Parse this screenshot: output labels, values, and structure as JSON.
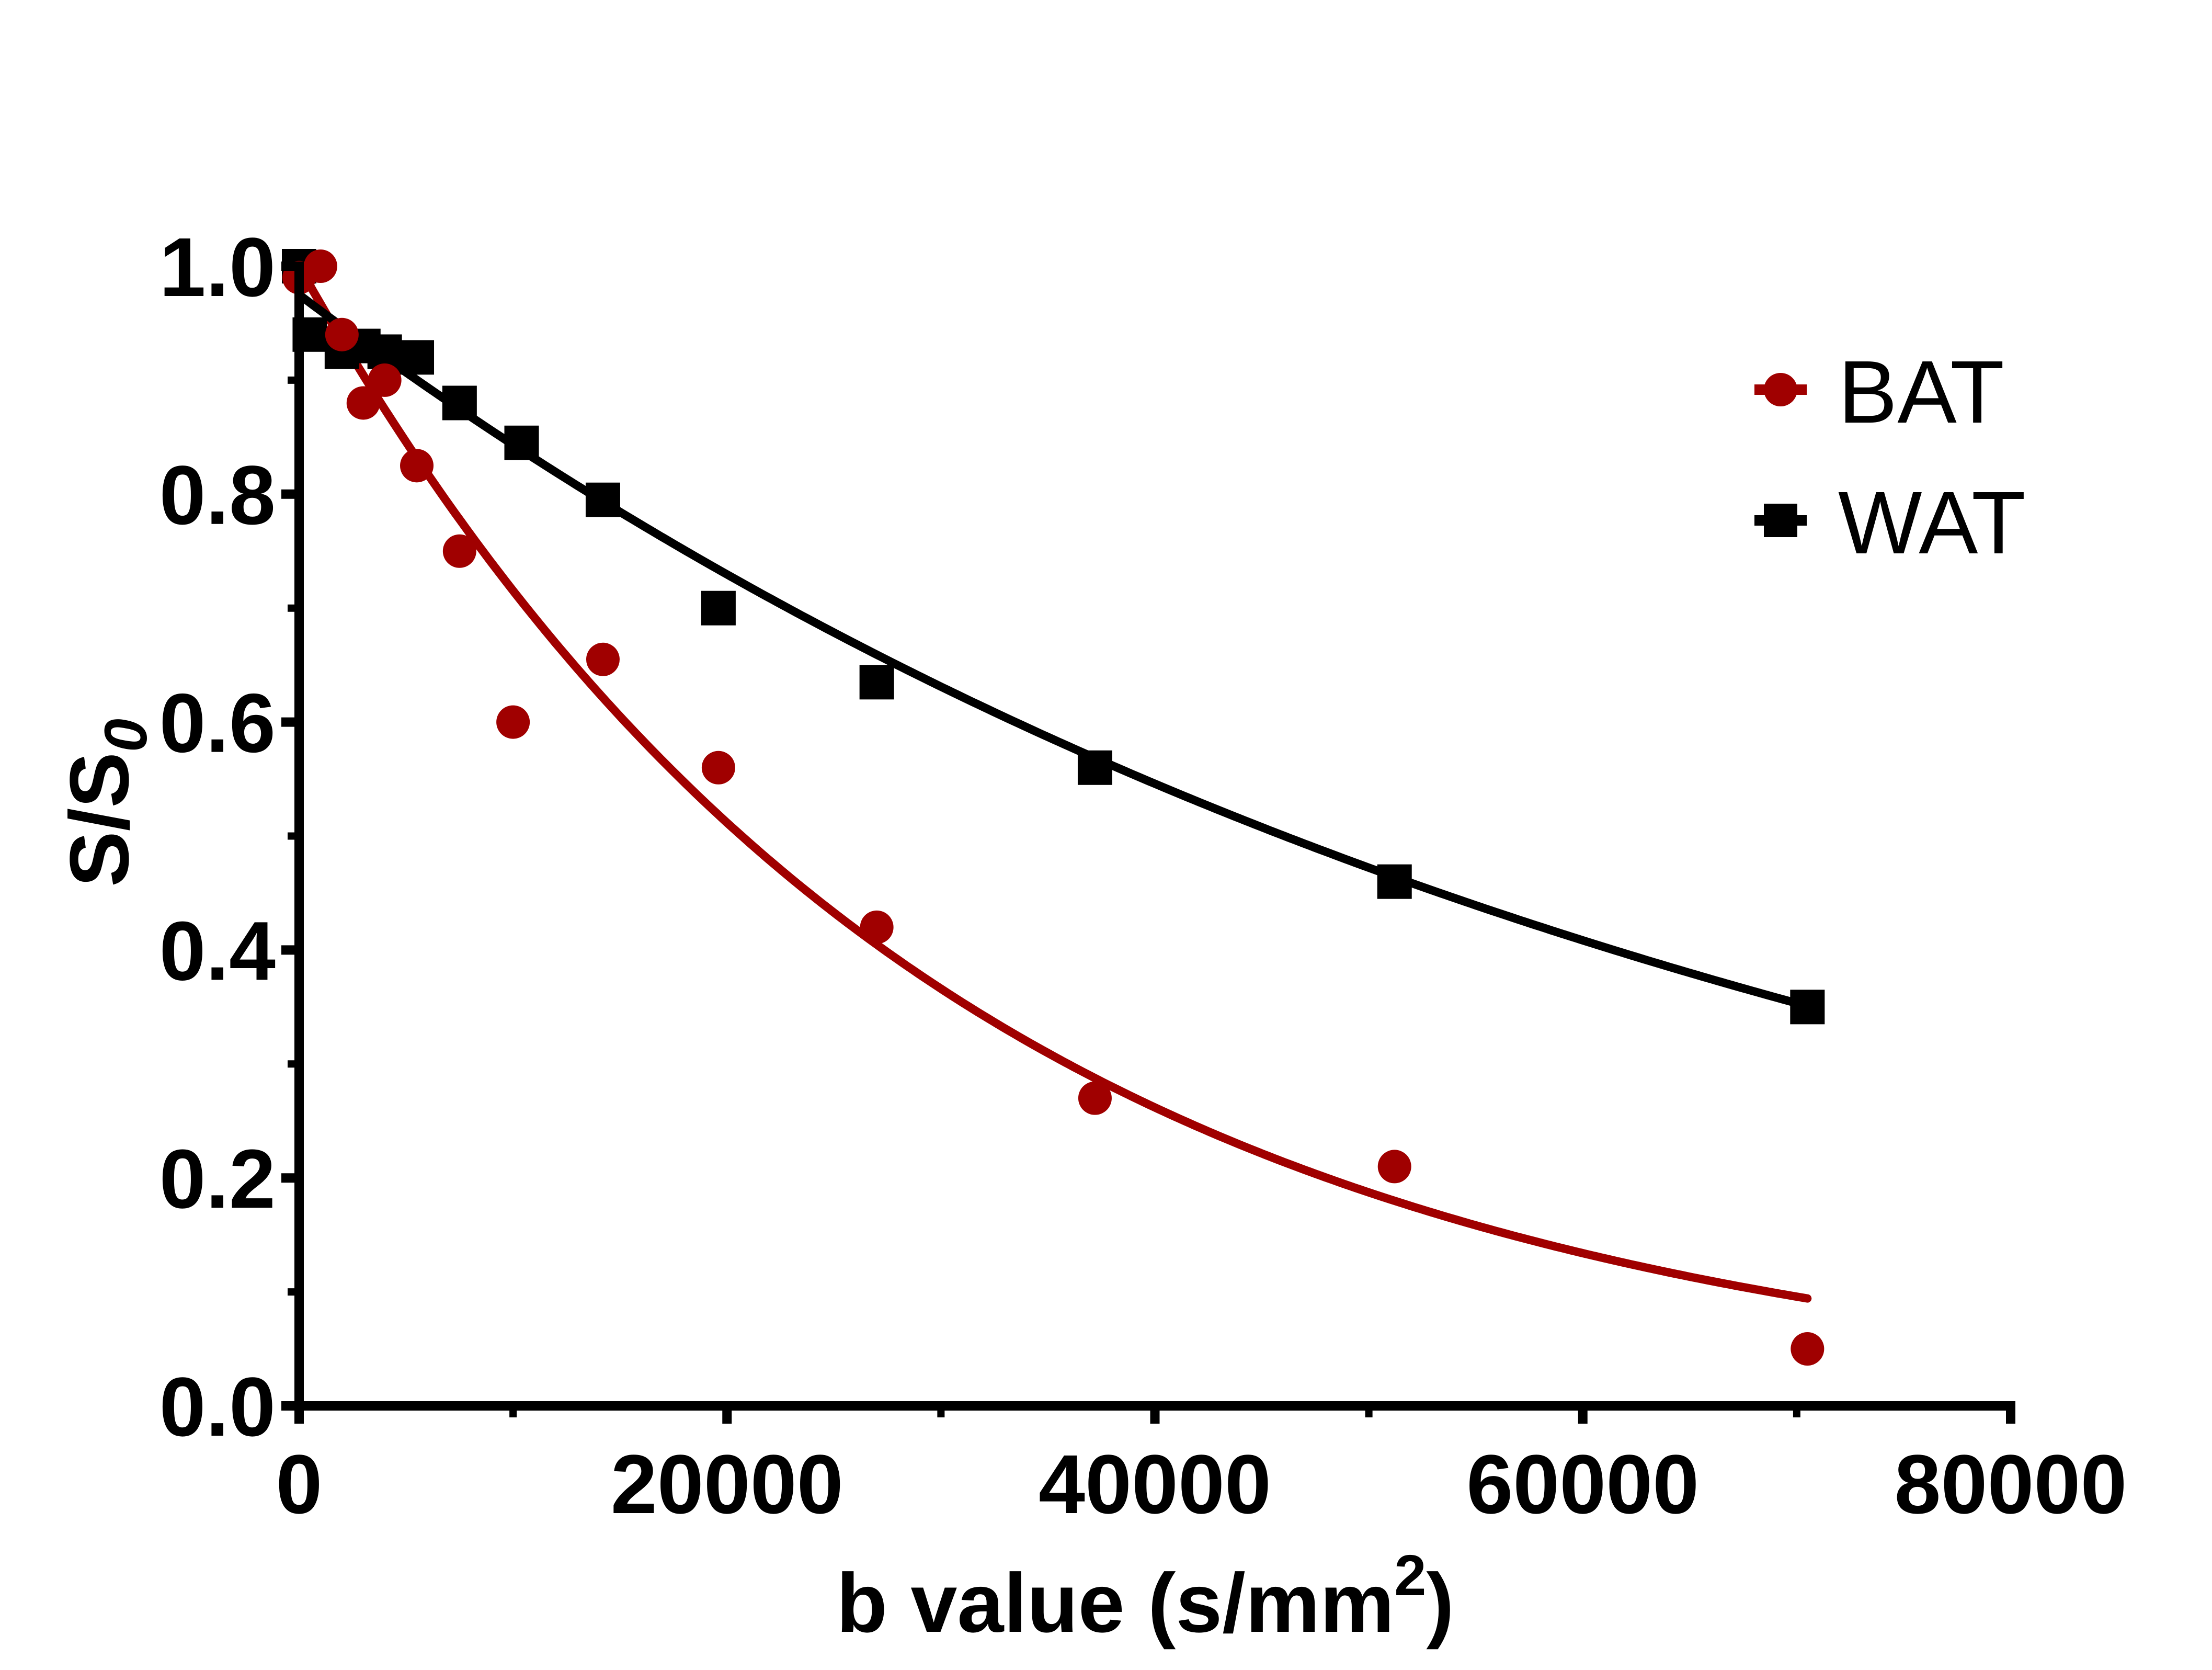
{
  "chart_data": {
    "type": "scatter",
    "xlabel": "b value (s/mm",
    "xlabel_sup": "2",
    "xlabel_close": ")",
    "ylabel": "S/S",
    "ylabel_sub": "0",
    "xlim": [
      0,
      80000
    ],
    "ylim": [
      0,
      1.0
    ],
    "xticks": [
      0,
      20000,
      40000,
      60000,
      80000
    ],
    "xtick_labels": [
      "0",
      "20000",
      "40000",
      "60000",
      "80000"
    ],
    "xminor": [
      10000,
      30000,
      50000,
      70000
    ],
    "yticks": [
      0,
      0.2,
      0.4,
      0.6,
      0.8,
      1.0
    ],
    "ytick_labels": [
      "0.0",
      "0.2",
      "0.4",
      "0.6",
      "0.8",
      "1.0"
    ],
    "yminor": [
      0.1,
      0.3,
      0.5,
      0.7,
      0.9
    ],
    "legend_position": "top-right",
    "series": [
      {
        "name": "BAT",
        "marker": "circle",
        "color": "#A00000",
        "x": [
          0,
          1000,
          2000,
          3000,
          4000,
          5500,
          7500,
          10000,
          14200,
          19600,
          27000,
          37200,
          51200,
          70500
        ],
        "y": [
          0.99,
          1.0,
          0.94,
          0.88,
          0.9,
          0.825,
          0.75,
          0.6,
          0.655,
          0.56,
          0.42,
          0.27,
          0.21,
          0.05
        ],
        "fit": {
          "model": "exp",
          "a": 1.0,
          "k": 3.35e-05
        }
      },
      {
        "name": "WAT",
        "marker": "square",
        "color": "#000000",
        "x": [
          0,
          500,
          2000,
          3000,
          4000,
          5500,
          7500,
          10400,
          14200,
          19600,
          27000,
          37200,
          51200,
          70500
        ],
        "y": [
          1.0,
          0.94,
          0.925,
          0.93,
          0.925,
          0.92,
          0.88,
          0.845,
          0.795,
          0.7,
          0.635,
          0.56,
          0.46,
          0.35
        ],
        "fit": {
          "model": "exp",
          "a": 0.975,
          "k": 1.45e-05
        }
      }
    ]
  }
}
